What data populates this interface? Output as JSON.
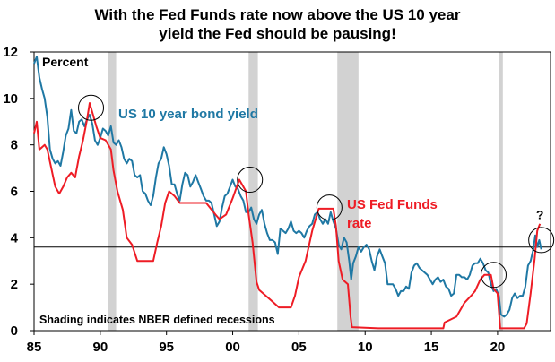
{
  "chart_data": {
    "type": "line",
    "title_line1": "With the Fed Funds rate now above the US 10 year",
    "title_line2": "yield the Fed should be pausing!",
    "ylabel": "Percent",
    "xlim": [
      1985,
      2024
    ],
    "ylim": [
      0,
      12
    ],
    "xticks": [
      {
        "value": 1985,
        "label": "85"
      },
      {
        "value": 1990,
        "label": "90"
      },
      {
        "value": 1995,
        "label": "95"
      },
      {
        "value": 2000,
        "label": "00"
      },
      {
        "value": 2005,
        "label": "05"
      },
      {
        "value": 2010,
        "label": "10"
      },
      {
        "value": 2015,
        "label": "15"
      },
      {
        "value": 2020,
        "label": "20"
      }
    ],
    "yticks": [
      {
        "value": 0,
        "label": "0"
      },
      {
        "value": 2,
        "label": "2"
      },
      {
        "value": 4,
        "label": "4"
      },
      {
        "value": 6,
        "label": "6"
      },
      {
        "value": 8,
        "label": "8"
      },
      {
        "value": 10,
        "label": "10"
      },
      {
        "value": 12,
        "label": "12"
      }
    ],
    "recessions": [
      [
        1990.6,
        1991.2
      ],
      [
        2001.2,
        2001.9
      ],
      [
        2007.9,
        2009.5
      ],
      [
        2020.1,
        2020.4
      ]
    ],
    "reference_line": 3.6,
    "circles": [
      {
        "x": 1989.3,
        "y": 9.6
      },
      {
        "x": 2001.3,
        "y": 6.5
      },
      {
        "x": 2007.3,
        "y": 5.3
      },
      {
        "x": 2019.7,
        "y": 2.4
      },
      {
        "x": 2023.3,
        "y": 3.9
      }
    ],
    "question_mark": {
      "text": "?",
      "x": 2023.2,
      "y": 5.0
    },
    "footnote": "Shading indicates NBER defined recessions",
    "series": [
      {
        "name": "US 10 year bond yield",
        "label": "US 10 year bond yield",
        "color": "#1f78a4",
        "points": [
          [
            1985.0,
            11.5
          ],
          [
            1985.2,
            11.8
          ],
          [
            1985.4,
            10.9
          ],
          [
            1985.6,
            10.4
          ],
          [
            1985.8,
            10.0
          ],
          [
            1986.0,
            9.2
          ],
          [
            1986.2,
            7.8
          ],
          [
            1986.4,
            7.4
          ],
          [
            1986.6,
            7.2
          ],
          [
            1986.8,
            7.3
          ],
          [
            1987.0,
            7.1
          ],
          [
            1987.2,
            7.7
          ],
          [
            1987.4,
            8.4
          ],
          [
            1987.6,
            8.7
          ],
          [
            1987.8,
            9.5
          ],
          [
            1988.0,
            8.6
          ],
          [
            1988.2,
            8.5
          ],
          [
            1988.4,
            9.0
          ],
          [
            1988.6,
            9.1
          ],
          [
            1988.8,
            8.8
          ],
          [
            1989.0,
            9.1
          ],
          [
            1989.2,
            9.3
          ],
          [
            1989.4,
            8.9
          ],
          [
            1989.6,
            8.2
          ],
          [
            1989.8,
            8.0
          ],
          [
            1990.0,
            8.3
          ],
          [
            1990.2,
            8.7
          ],
          [
            1990.4,
            8.6
          ],
          [
            1990.6,
            8.4
          ],
          [
            1990.8,
            8.8
          ],
          [
            1991.0,
            8.1
          ],
          [
            1991.2,
            8.0
          ],
          [
            1991.4,
            8.2
          ],
          [
            1991.6,
            7.9
          ],
          [
            1991.8,
            7.4
          ],
          [
            1992.0,
            7.2
          ],
          [
            1992.2,
            7.4
          ],
          [
            1992.4,
            7.3
          ],
          [
            1992.6,
            6.7
          ],
          [
            1992.8,
            6.6
          ],
          [
            1993.0,
            6.7
          ],
          [
            1993.2,
            6.0
          ],
          [
            1993.4,
            5.9
          ],
          [
            1993.6,
            5.6
          ],
          [
            1993.8,
            5.4
          ],
          [
            1994.0,
            5.8
          ],
          [
            1994.2,
            6.6
          ],
          [
            1994.4,
            7.2
          ],
          [
            1994.6,
            7.4
          ],
          [
            1994.8,
            7.9
          ],
          [
            1995.0,
            7.6
          ],
          [
            1995.2,
            7.1
          ],
          [
            1995.4,
            6.3
          ],
          [
            1995.6,
            6.3
          ],
          [
            1995.8,
            5.9
          ],
          [
            1996.0,
            5.6
          ],
          [
            1996.2,
            6.3
          ],
          [
            1996.4,
            6.8
          ],
          [
            1996.6,
            6.7
          ],
          [
            1996.8,
            6.2
          ],
          [
            1997.0,
            6.4
          ],
          [
            1997.2,
            6.7
          ],
          [
            1997.4,
            6.4
          ],
          [
            1997.6,
            6.1
          ],
          [
            1997.8,
            5.8
          ],
          [
            1998.0,
            5.6
          ],
          [
            1998.2,
            5.6
          ],
          [
            1998.4,
            5.5
          ],
          [
            1998.6,
            5.0
          ],
          [
            1998.8,
            4.5
          ],
          [
            1999.0,
            4.7
          ],
          [
            1999.2,
            5.3
          ],
          [
            1999.4,
            5.8
          ],
          [
            1999.6,
            5.9
          ],
          [
            1999.8,
            6.2
          ],
          [
            2000.0,
            6.5
          ],
          [
            2000.2,
            6.2
          ],
          [
            2000.4,
            6.1
          ],
          [
            2000.6,
            5.8
          ],
          [
            2000.8,
            5.6
          ],
          [
            2001.0,
            5.1
          ],
          [
            2001.2,
            5.1
          ],
          [
            2001.4,
            5.3
          ],
          [
            2001.6,
            4.8
          ],
          [
            2001.8,
            4.6
          ],
          [
            2002.0,
            5.0
          ],
          [
            2002.2,
            5.2
          ],
          [
            2002.4,
            4.6
          ],
          [
            2002.6,
            4.2
          ],
          [
            2002.8,
            3.9
          ],
          [
            2003.0,
            3.9
          ],
          [
            2003.2,
            3.8
          ],
          [
            2003.4,
            3.3
          ],
          [
            2003.6,
            4.4
          ],
          [
            2003.8,
            4.3
          ],
          [
            2004.0,
            4.2
          ],
          [
            2004.2,
            4.4
          ],
          [
            2004.4,
            4.7
          ],
          [
            2004.6,
            4.3
          ],
          [
            2004.8,
            4.2
          ],
          [
            2005.0,
            4.3
          ],
          [
            2005.2,
            4.2
          ],
          [
            2005.4,
            4.0
          ],
          [
            2005.6,
            4.3
          ],
          [
            2005.8,
            4.5
          ],
          [
            2006.0,
            4.6
          ],
          [
            2006.2,
            5.0
          ],
          [
            2006.4,
            5.1
          ],
          [
            2006.6,
            4.8
          ],
          [
            2006.8,
            4.6
          ],
          [
            2007.0,
            4.8
          ],
          [
            2007.2,
            4.6
          ],
          [
            2007.4,
            5.1
          ],
          [
            2007.6,
            4.7
          ],
          [
            2007.8,
            4.4
          ],
          [
            2008.0,
            3.7
          ],
          [
            2008.2,
            3.5
          ],
          [
            2008.4,
            4.0
          ],
          [
            2008.6,
            3.8
          ],
          [
            2008.8,
            3.0
          ],
          [
            2008.95,
            2.2
          ],
          [
            2009.1,
            2.9
          ],
          [
            2009.3,
            3.2
          ],
          [
            2009.5,
            3.6
          ],
          [
            2009.7,
            3.4
          ],
          [
            2009.9,
            3.6
          ],
          [
            2010.1,
            3.7
          ],
          [
            2010.3,
            3.5
          ],
          [
            2010.5,
            3.0
          ],
          [
            2010.7,
            2.6
          ],
          [
            2010.9,
            3.2
          ],
          [
            2011.1,
            3.5
          ],
          [
            2011.3,
            3.2
          ],
          [
            2011.5,
            2.9
          ],
          [
            2011.7,
            2.0
          ],
          [
            2011.9,
            2.0
          ],
          [
            2012.1,
            2.0
          ],
          [
            2012.3,
            1.8
          ],
          [
            2012.5,
            1.5
          ],
          [
            2012.7,
            1.7
          ],
          [
            2012.9,
            1.7
          ],
          [
            2013.1,
            1.9
          ],
          [
            2013.3,
            1.8
          ],
          [
            2013.5,
            2.5
          ],
          [
            2013.7,
            2.8
          ],
          [
            2013.9,
            2.9
          ],
          [
            2014.1,
            2.7
          ],
          [
            2014.3,
            2.6
          ],
          [
            2014.5,
            2.5
          ],
          [
            2014.7,
            2.4
          ],
          [
            2014.9,
            2.2
          ],
          [
            2015.1,
            2.0
          ],
          [
            2015.3,
            2.2
          ],
          [
            2015.5,
            2.3
          ],
          [
            2015.7,
            2.1
          ],
          [
            2015.9,
            2.2
          ],
          [
            2016.1,
            1.9
          ],
          [
            2016.3,
            1.8
          ],
          [
            2016.5,
            1.5
          ],
          [
            2016.7,
            1.6
          ],
          [
            2016.9,
            2.4
          ],
          [
            2017.1,
            2.4
          ],
          [
            2017.3,
            2.3
          ],
          [
            2017.5,
            2.3
          ],
          [
            2017.7,
            2.2
          ],
          [
            2017.9,
            2.4
          ],
          [
            2018.1,
            2.8
          ],
          [
            2018.3,
            2.9
          ],
          [
            2018.5,
            2.9
          ],
          [
            2018.7,
            3.1
          ],
          [
            2018.9,
            2.9
          ],
          [
            2019.1,
            2.6
          ],
          [
            2019.3,
            2.5
          ],
          [
            2019.5,
            2.0
          ],
          [
            2019.7,
            1.7
          ],
          [
            2019.9,
            1.8
          ],
          [
            2020.1,
            1.5
          ],
          [
            2020.25,
            0.7
          ],
          [
            2020.5,
            0.6
          ],
          [
            2020.7,
            0.7
          ],
          [
            2020.9,
            0.9
          ],
          [
            2021.1,
            1.4
          ],
          [
            2021.3,
            1.6
          ],
          [
            2021.5,
            1.4
          ],
          [
            2021.7,
            1.5
          ],
          [
            2021.9,
            1.5
          ],
          [
            2022.1,
            1.9
          ],
          [
            2022.3,
            2.8
          ],
          [
            2022.5,
            3.0
          ],
          [
            2022.7,
            3.5
          ],
          [
            2022.85,
            4.1
          ],
          [
            2023.0,
            3.6
          ],
          [
            2023.15,
            3.9
          ],
          [
            2023.3,
            3.5
          ]
        ]
      },
      {
        "name": "US Fed Funds rate",
        "label_line1": "US Fed Funds",
        "label_line2": "rate",
        "color": "#ee1c25",
        "points": [
          [
            1985.0,
            8.5
          ],
          [
            1985.2,
            9.0
          ],
          [
            1985.4,
            7.8
          ],
          [
            1985.6,
            7.9
          ],
          [
            1985.8,
            8.0
          ],
          [
            1986.0,
            7.8
          ],
          [
            1986.3,
            7.0
          ],
          [
            1986.6,
            6.2
          ],
          [
            1986.9,
            5.9
          ],
          [
            1987.2,
            6.2
          ],
          [
            1987.5,
            6.6
          ],
          [
            1987.8,
            6.8
          ],
          [
            1988.1,
            6.6
          ],
          [
            1988.4,
            7.5
          ],
          [
            1988.7,
            8.2
          ],
          [
            1989.0,
            9.1
          ],
          [
            1989.2,
            9.8
          ],
          [
            1989.4,
            9.4
          ],
          [
            1989.7,
            8.8
          ],
          [
            1990.0,
            8.3
          ],
          [
            1990.4,
            8.2
          ],
          [
            1990.8,
            7.8
          ],
          [
            1991.0,
            6.9
          ],
          [
            1991.3,
            6.0
          ],
          [
            1991.7,
            5.2
          ],
          [
            1992.0,
            4.0
          ],
          [
            1992.4,
            3.7
          ],
          [
            1992.8,
            3.0
          ],
          [
            1993.5,
            3.0
          ],
          [
            1994.0,
            3.0
          ],
          [
            1994.3,
            3.8
          ],
          [
            1994.6,
            4.5
          ],
          [
            1994.9,
            5.5
          ],
          [
            1995.2,
            6.0
          ],
          [
            1995.6,
            5.8
          ],
          [
            1996.0,
            5.5
          ],
          [
            1997.0,
            5.5
          ],
          [
            1998.0,
            5.5
          ],
          [
            1998.7,
            5.0
          ],
          [
            1999.0,
            4.8
          ],
          [
            1999.5,
            5.0
          ],
          [
            2000.0,
            5.7
          ],
          [
            2000.5,
            6.5
          ],
          [
            2001.0,
            6.0
          ],
          [
            2001.2,
            5.0
          ],
          [
            2001.5,
            3.8
          ],
          [
            2001.8,
            2.1
          ],
          [
            2002.0,
            1.75
          ],
          [
            2002.9,
            1.3
          ],
          [
            2003.5,
            1.0
          ],
          [
            2004.4,
            1.0
          ],
          [
            2004.7,
            1.5
          ],
          [
            2005.0,
            2.3
          ],
          [
            2005.5,
            3.0
          ],
          [
            2006.0,
            4.3
          ],
          [
            2006.5,
            5.25
          ],
          [
            2007.6,
            5.25
          ],
          [
            2007.8,
            4.5
          ],
          [
            2008.0,
            3.0
          ],
          [
            2008.3,
            2.2
          ],
          [
            2008.7,
            2.0
          ],
          [
            2008.9,
            0.6
          ],
          [
            2009.0,
            0.15
          ],
          [
            2011.0,
            0.1
          ],
          [
            2013.0,
            0.1
          ],
          [
            2015.9,
            0.1
          ],
          [
            2016.0,
            0.35
          ],
          [
            2016.9,
            0.6
          ],
          [
            2017.3,
            1.0
          ],
          [
            2017.5,
            1.2
          ],
          [
            2018.0,
            1.5
          ],
          [
            2018.3,
            1.7
          ],
          [
            2018.7,
            2.2
          ],
          [
            2019.0,
            2.4
          ],
          [
            2019.5,
            2.4
          ],
          [
            2019.7,
            1.8
          ],
          [
            2020.0,
            1.6
          ],
          [
            2020.2,
            0.1
          ],
          [
            2021.0,
            0.1
          ],
          [
            2022.0,
            0.1
          ],
          [
            2022.2,
            0.3
          ],
          [
            2022.5,
            1.6
          ],
          [
            2022.8,
            3.1
          ],
          [
            2023.0,
            4.3
          ],
          [
            2023.2,
            4.6
          ]
        ]
      }
    ]
  }
}
